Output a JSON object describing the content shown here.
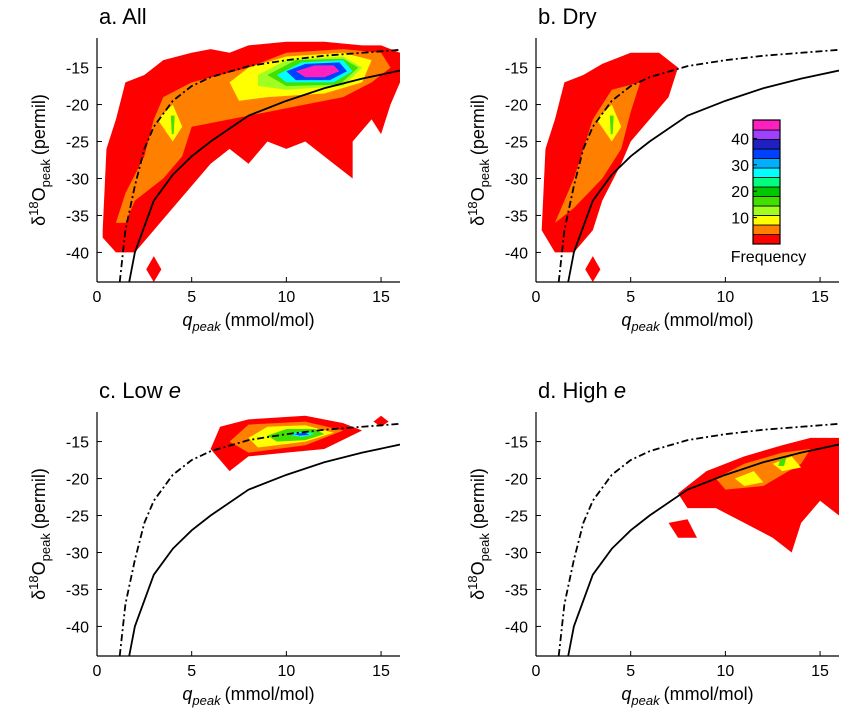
{
  "chart_data": [
    {
      "type": "contour",
      "title": {
        "text": "a. All"
      },
      "xlabel": {
        "var": "q",
        "sub": "peak",
        "unit": "(mmol/mol)"
      },
      "ylabel": {
        "symbol": "δ",
        "sup": "18",
        "base": "O",
        "sub": "peak",
        "unit": "(permil)"
      },
      "xlim": [
        0,
        16
      ],
      "ylim": [
        -44,
        -11
      ],
      "xticks": [
        0,
        5,
        10,
        15
      ],
      "yticks": [
        -40,
        -35,
        -30,
        -25,
        -20,
        -15
      ],
      "contours": [
        {
          "level": 1,
          "x": [
            0.3,
            0.5,
            1,
            1.5,
            2.5,
            3.5,
            5,
            6,
            7,
            8,
            10,
            12,
            14,
            15,
            16,
            16,
            15.5,
            15,
            14.5,
            13.5,
            13.5,
            12.5,
            11,
            10,
            9,
            8,
            7,
            6,
            5,
            4,
            3,
            2,
            1,
            0.3
          ],
          "y": [
            -37,
            -26,
            -22,
            -17,
            -16,
            -14,
            -13,
            -12.5,
            -13,
            -12,
            -11.5,
            -11.5,
            -12,
            -12,
            -13,
            -17,
            -20,
            -24,
            -22,
            -25,
            -30,
            -28,
            -25,
            -26,
            -25,
            -28,
            -26,
            -28,
            -31,
            -34,
            -37,
            -40,
            -40,
            -38
          ]
        },
        {
          "level": 1,
          "x": [
            3,
            3.4,
            3,
            2.6
          ],
          "y": [
            -40.5,
            -42.3,
            -44,
            -42.3
          ]
        },
        {
          "level": 5,
          "x": [
            1,
            1.5,
            2.5,
            3,
            3.5,
            5,
            6.5,
            8,
            10,
            13,
            15,
            15.5,
            14.5,
            13,
            11,
            9,
            7,
            5,
            4.5,
            3.5,
            2,
            1.5
          ],
          "y": [
            -36,
            -32,
            -27,
            -22,
            -19,
            -17,
            -16,
            -15,
            -13,
            -12.5,
            -13,
            -15,
            -17,
            -19,
            -20,
            -21,
            -22,
            -23,
            -27,
            -30,
            -33,
            -36
          ]
        },
        {
          "level": 9,
          "x": [
            7,
            8,
            10,
            13,
            14.5,
            14,
            12,
            9,
            7.5
          ],
          "y": [
            -17,
            -15,
            -13.5,
            -13,
            -14,
            -17,
            -18.5,
            -19,
            -19.5
          ]
        },
        {
          "level": 9,
          "x": [
            3.2,
            4,
            4.5,
            4
          ],
          "y": [
            -22,
            -20,
            -23,
            -25
          ]
        },
        {
          "level": 17,
          "x": [
            3.9,
            4.1,
            4.05,
            3.95
          ],
          "y": [
            -21.5,
            -21.5,
            -24,
            -24
          ]
        },
        {
          "level": 13,
          "x": [
            8.5,
            10,
            13,
            14,
            13,
            10,
            8.5
          ],
          "y": [
            -16,
            -14,
            -13.5,
            -15,
            -17.5,
            -18,
            -17.5
          ]
        },
        {
          "level": 17,
          "x": [
            9,
            10.5,
            13,
            13.8,
            12.8,
            10
          ],
          "y": [
            -16,
            -14,
            -13.8,
            -15,
            -17.3,
            -17.5
          ]
        },
        {
          "level": 26,
          "x": [
            9.5,
            10.8,
            13,
            13.5,
            12.5,
            10
          ],
          "y": [
            -16,
            -14.3,
            -14,
            -15.5,
            -17,
            -17
          ]
        },
        {
          "level": 33,
          "x": [
            10,
            11,
            12.8,
            13.2,
            12.3,
            10.5
          ],
          "y": [
            -15.5,
            -14.5,
            -14.3,
            -15.5,
            -16.7,
            -16.7
          ]
        },
        {
          "level": 44,
          "x": [
            10.5,
            11.5,
            12.5,
            12.8,
            12,
            11
          ],
          "y": [
            -15.5,
            -14.7,
            -14.7,
            -15.5,
            -16.3,
            -16.3
          ]
        }
      ],
      "series": [
        {
          "style": "solid",
          "color": "#000000",
          "x": [
            1.7,
            2,
            3,
            4,
            5,
            6,
            8,
            10,
            12,
            14,
            16
          ],
          "values": [
            -44,
            -40,
            -33,
            -29.5,
            -27,
            -25,
            -21.5,
            -19.5,
            -17.8,
            -16.5,
            -15.4
          ]
        },
        {
          "style": "dashdot",
          "color": "#000000",
          "x": [
            1.2,
            1.5,
            2,
            2.5,
            3,
            4,
            5,
            6,
            8,
            10,
            12,
            14,
            16
          ],
          "values": [
            -44,
            -37,
            -31,
            -26,
            -23,
            -19.5,
            -17.5,
            -16.3,
            -14.8,
            -14,
            -13.4,
            -13,
            -12.6
          ]
        }
      ]
    },
    {
      "type": "contour",
      "title": {
        "text": "b. Dry"
      },
      "xlabel": {
        "var": "q",
        "sub": "peak",
        "unit": "(mmol/mol)"
      },
      "ylabel": {
        "symbol": "δ",
        "sup": "18",
        "base": "O",
        "sub": "peak",
        "unit": "(permil)"
      },
      "xlim": [
        0,
        16
      ],
      "ylim": [
        -44,
        -11
      ],
      "xticks": [
        0,
        5,
        10,
        15
      ],
      "yticks": [
        -40,
        -35,
        -30,
        -25,
        -20,
        -15
      ],
      "contours": [
        {
          "level": 1,
          "x": [
            0.3,
            0.5,
            1,
            1.5,
            2.5,
            3.5,
            5,
            6.5,
            7.5,
            7,
            6,
            5,
            4.5,
            3.5,
            3,
            2,
            1
          ],
          "y": [
            -37,
            -26,
            -22,
            -17,
            -16,
            -14.5,
            -13,
            -13,
            -15,
            -19,
            -22,
            -25,
            -28,
            -33,
            -37,
            -40,
            -40
          ]
        },
        {
          "level": 1,
          "x": [
            3,
            3.4,
            3,
            2.6
          ],
          "y": [
            -40.5,
            -42.3,
            -44,
            -42.3
          ]
        },
        {
          "level": 5,
          "x": [
            1,
            2,
            3,
            4,
            5.5,
            5,
            4.5,
            3.5,
            2
          ],
          "y": [
            -36,
            -30,
            -22,
            -18,
            -17,
            -21,
            -26,
            -30,
            -34
          ]
        },
        {
          "level": 9,
          "x": [
            3.2,
            4,
            4.5,
            4
          ],
          "y": [
            -22,
            -20,
            -23,
            -25
          ]
        },
        {
          "level": 17,
          "x": [
            3.9,
            4.1,
            4.05,
            3.95
          ],
          "y": [
            -21.5,
            -21.5,
            -24,
            -24
          ]
        }
      ],
      "series": [
        {
          "style": "solid",
          "color": "#000000",
          "x": [
            1.7,
            2,
            3,
            4,
            5,
            6,
            8,
            10,
            12,
            14,
            16
          ],
          "values": [
            -44,
            -40,
            -33,
            -29.5,
            -27,
            -25,
            -21.5,
            -19.5,
            -17.8,
            -16.5,
            -15.4
          ]
        },
        {
          "style": "dashdot",
          "color": "#000000",
          "x": [
            1.2,
            1.5,
            2,
            2.5,
            3,
            4,
            5,
            6,
            8,
            10,
            12,
            14,
            16
          ],
          "values": [
            -44,
            -37,
            -31,
            -26,
            -23,
            -19.5,
            -17.5,
            -16.3,
            -14.8,
            -14,
            -13.4,
            -13,
            -12.6
          ]
        }
      ],
      "colorbar": {
        "label": "Frequency",
        "lim": [
          0,
          47
        ],
        "ticks": [
          10,
          20,
          30,
          40
        ],
        "bounds": [
          0,
          3.6,
          7.2,
          10.8,
          14.4,
          18,
          21.6,
          25.2,
          28.8,
          32.4,
          36,
          39.6,
          43.2,
          47
        ],
        "colors": [
          "#ff0000",
          "#ff8000",
          "#ffff00",
          "#a0ff20",
          "#40e000",
          "#00c800",
          "#00ff80",
          "#00ffff",
          "#00b0ff",
          "#0040ff",
          "#2020c0",
          "#a040ff",
          "#ff20c0"
        ]
      }
    },
    {
      "type": "contour",
      "title": {
        "text": "c. Low",
        "italic": "e"
      },
      "xlabel": {
        "var": "q",
        "sub": "peak",
        "unit": "(mmol/mol)"
      },
      "ylabel": {
        "symbol": "δ",
        "sup": "18",
        "base": "O",
        "sub": "peak",
        "unit": "(permil)"
      },
      "xlim": [
        0,
        16
      ],
      "ylim": [
        -44,
        -11
      ],
      "xticks": [
        0,
        5,
        10,
        15
      ],
      "yticks": [
        -40,
        -35,
        -30,
        -25,
        -20,
        -15
      ],
      "contours": [
        {
          "level": 1,
          "x": [
            6,
            6.5,
            8,
            11,
            13,
            14,
            12,
            10,
            8,
            7
          ],
          "y": [
            -16,
            -13,
            -12,
            -11.5,
            -12.5,
            -13.5,
            -16,
            -16.5,
            -17,
            -19
          ]
        },
        {
          "level": 1,
          "x": [
            14.6,
            15,
            15.4,
            15
          ],
          "y": [
            -12.3,
            -11.5,
            -12.3,
            -13
          ]
        },
        {
          "level": 5,
          "x": [
            7,
            8,
            11,
            13,
            11,
            8
          ],
          "y": [
            -15,
            -12.7,
            -12.3,
            -13.5,
            -15.5,
            -16.5
          ]
        },
        {
          "level": 9,
          "x": [
            8,
            9,
            11,
            12.5,
            11,
            8.5
          ],
          "y": [
            -14.5,
            -13,
            -12.8,
            -13.8,
            -15,
            -15.8
          ]
        },
        {
          "level": 17,
          "x": [
            9,
            10,
            11.5,
            12,
            11,
            9.5
          ],
          "y": [
            -14.2,
            -13.3,
            -13.3,
            -14,
            -14.8,
            -15
          ]
        },
        {
          "level": 26,
          "x": [
            10,
            11,
            11.5,
            10.8
          ],
          "y": [
            -14,
            -13.6,
            -14,
            -14.4
          ]
        },
        {
          "level": 33,
          "x": [
            10.4,
            11,
            11.2,
            10.7
          ],
          "y": [
            -14,
            -13.8,
            -14.1,
            -14.2
          ]
        }
      ],
      "series": [
        {
          "style": "solid",
          "color": "#000000",
          "x": [
            1.7,
            2,
            3,
            4,
            5,
            6,
            8,
            10,
            12,
            14,
            16
          ],
          "values": [
            -44,
            -40,
            -33,
            -29.5,
            -27,
            -25,
            -21.5,
            -19.5,
            -17.8,
            -16.5,
            -15.4
          ]
        },
        {
          "style": "dashdot",
          "color": "#000000",
          "x": [
            1.2,
            1.5,
            2,
            2.5,
            3,
            4,
            5,
            6,
            8,
            10,
            12,
            14,
            16
          ],
          "values": [
            -44,
            -37,
            -31,
            -26,
            -23,
            -19.5,
            -17.5,
            -16.3,
            -14.8,
            -14,
            -13.4,
            -13,
            -12.6
          ]
        }
      ]
    },
    {
      "type": "contour",
      "title": {
        "text": "d. High",
        "italic": "e"
      },
      "xlabel": {
        "var": "q",
        "sub": "peak",
        "unit": "(mmol/mol)"
      },
      "ylabel": {
        "symbol": "δ",
        "sup": "18",
        "base": "O",
        "sub": "peak",
        "unit": "(permil)"
      },
      "xlim": [
        0,
        16
      ],
      "ylim": [
        -44,
        -11
      ],
      "xticks": [
        0,
        5,
        10,
        15
      ],
      "yticks": [
        -40,
        -35,
        -30,
        -25,
        -20,
        -15
      ],
      "contours": [
        {
          "level": 1,
          "x": [
            7.5,
            9,
            11,
            13,
            14.5,
            16,
            16,
            15,
            14,
            13.5,
            12.5,
            11,
            9.5,
            8
          ],
          "y": [
            -22,
            -19,
            -17,
            -15.5,
            -14.5,
            -14.5,
            -25,
            -23,
            -26,
            -30,
            -28,
            -26,
            -24,
            -24
          ]
        },
        {
          "level": 1,
          "x": [
            7,
            8,
            8.5,
            7.5
          ],
          "y": [
            -26,
            -25.5,
            -28,
            -28
          ]
        },
        {
          "level": 5,
          "x": [
            9.5,
            11,
            13,
            14.5,
            14,
            12,
            10
          ],
          "y": [
            -20,
            -18,
            -16.5,
            -16,
            -18,
            -21,
            -21.5
          ]
        },
        {
          "level": 9,
          "x": [
            10.5,
            11.5,
            12,
            11
          ],
          "y": [
            -20,
            -19,
            -20.5,
            -21
          ]
        },
        {
          "level": 9,
          "x": [
            12.5,
            13.5,
            14,
            13
          ],
          "y": [
            -18,
            -17,
            -18.5,
            -19
          ]
        },
        {
          "level": 17,
          "x": [
            12.9,
            13.2,
            13.1,
            12.8
          ],
          "y": [
            -17.3,
            -17.3,
            -18.3,
            -18.3
          ]
        }
      ],
      "series": [
        {
          "style": "solid",
          "color": "#000000",
          "x": [
            1.7,
            2,
            3,
            4,
            5,
            6,
            8,
            10,
            12,
            14,
            16
          ],
          "values": [
            -44,
            -40,
            -33,
            -29.5,
            -27,
            -25,
            -21.5,
            -19.5,
            -17.8,
            -16.5,
            -15.4
          ]
        },
        {
          "style": "dashdot",
          "color": "#000000",
          "x": [
            1.2,
            1.5,
            2,
            2.5,
            3,
            4,
            5,
            6,
            8,
            10,
            12,
            14,
            16
          ],
          "values": [
            -44,
            -37,
            -31,
            -26,
            -23,
            -19.5,
            -17.5,
            -16.3,
            -14.8,
            -14,
            -13.4,
            -13,
            -12.6
          ]
        }
      ]
    }
  ]
}
